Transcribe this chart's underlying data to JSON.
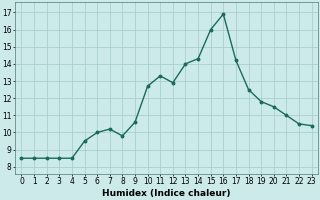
{
  "x": [
    0,
    1,
    2,
    3,
    4,
    5,
    6,
    7,
    8,
    9,
    10,
    11,
    12,
    13,
    14,
    15,
    16,
    17,
    18,
    19,
    20,
    21,
    22,
    23
  ],
  "y": [
    8.5,
    8.5,
    8.5,
    8.5,
    8.5,
    9.5,
    10.0,
    10.2,
    9.8,
    10.6,
    12.7,
    13.3,
    12.9,
    14.0,
    14.3,
    16.0,
    16.9,
    14.2,
    12.5,
    11.8,
    11.5,
    11.0,
    10.5,
    10.4
  ],
  "line_color": "#1a6b5a",
  "marker": "o",
  "markersize": 1.8,
  "linewidth": 1.0,
  "xlabel": "Humidex (Indice chaleur)",
  "xlabel_fontsize": 6.5,
  "bg_color": "#cceaea",
  "grid_color": "#aacece",
  "xticks": [
    0,
    1,
    2,
    3,
    4,
    5,
    6,
    7,
    8,
    9,
    10,
    11,
    12,
    13,
    14,
    15,
    16,
    17,
    18,
    19,
    20,
    21,
    22,
    23
  ],
  "yticks": [
    8,
    9,
    10,
    11,
    12,
    13,
    14,
    15,
    16,
    17
  ],
  "ylim": [
    7.6,
    17.6
  ],
  "xlim": [
    -0.5,
    23.5
  ],
  "tick_fontsize": 5.5
}
